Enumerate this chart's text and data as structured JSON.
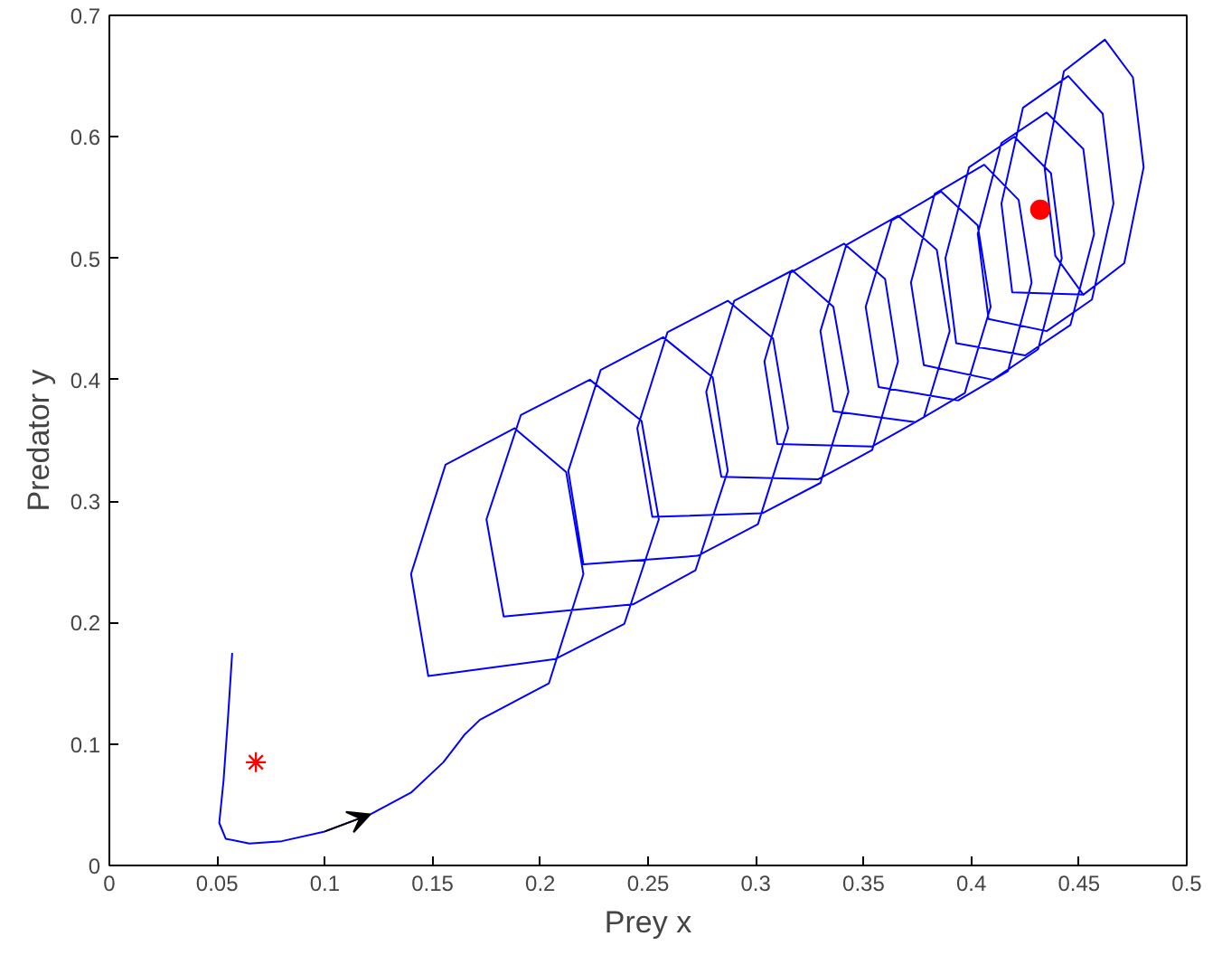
{
  "chart_data": {
    "type": "line",
    "xlabel": "Prey x",
    "ylabel": "Predator y",
    "xlim": [
      0,
      0.5
    ],
    "ylim": [
      0,
      0.7
    ],
    "xticks": [
      0,
      0.05,
      0.1,
      0.15,
      0.2,
      0.25,
      0.3,
      0.35,
      0.4,
      0.45,
      0.5
    ],
    "yticks": [
      0,
      0.1,
      0.2,
      0.3,
      0.4,
      0.5,
      0.6,
      0.7
    ],
    "grid": false,
    "series": [
      {
        "color": "#0000ff",
        "marker": "none",
        "x": [
          0.057,
          0.055,
          0.053,
          0.051,
          0.054,
          0.065,
          0.08,
          0.1,
          0.121,
          0.14,
          0.155,
          0.165,
          0.172,
          0.204,
          0.22,
          0.212,
          0.188,
          0.156,
          0.14,
          0.148,
          0.207,
          0.239,
          0.255,
          0.247,
          0.223,
          0.191,
          0.175,
          0.183,
          0.243,
          0.272,
          0.287,
          0.28,
          0.257,
          0.228,
          0.213,
          0.22,
          0.273,
          0.301,
          0.315,
          0.308,
          0.287,
          0.259,
          0.245,
          0.252,
          0.303,
          0.33,
          0.343,
          0.336,
          0.317,
          0.29,
          0.277,
          0.284,
          0.329,
          0.354,
          0.366,
          0.36,
          0.341,
          0.316,
          0.304,
          0.31,
          0.354,
          0.378,
          0.39,
          0.384,
          0.366,
          0.342,
          0.33,
          0.336,
          0.374,
          0.397,
          0.409,
          0.403,
          0.386,
          0.363,
          0.351,
          0.357,
          0.394,
          0.417,
          0.428,
          0.422,
          0.406,
          0.383,
          0.372,
          0.378,
          0.41,
          0.431,
          0.442,
          0.437,
          0.42,
          0.399,
          0.388,
          0.393,
          0.425,
          0.446,
          0.457,
          0.452,
          0.435,
          0.414,
          0.403,
          0.408,
          0.435,
          0.456,
          0.466,
          0.461,
          0.445,
          0.424,
          0.414,
          0.419,
          0.452,
          0.471,
          0.48,
          0.475,
          0.462,
          0.443,
          0.434,
          0.439,
          0.452,
          0.471,
          0.48,
          0.475,
          0.462,
          0.443,
          0.434,
          0.439,
          0.452
        ],
        "values": [
          0.175,
          0.12,
          0.07,
          0.035,
          0.022,
          0.018,
          0.02,
          0.028,
          0.042,
          0.06,
          0.085,
          0.108,
          0.12,
          0.15,
          0.24,
          0.324,
          0.36,
          0.33,
          0.24,
          0.156,
          0.17,
          0.199,
          0.285,
          0.366,
          0.4,
          0.371,
          0.285,
          0.205,
          0.215,
          0.243,
          0.325,
          0.402,
          0.435,
          0.408,
          0.325,
          0.248,
          0.255,
          0.281,
          0.36,
          0.434,
          0.465,
          0.439,
          0.36,
          0.287,
          0.29,
          0.315,
          0.39,
          0.46,
          0.49,
          0.465,
          0.39,
          0.32,
          0.318,
          0.342,
          0.415,
          0.483,
          0.512,
          0.488,
          0.415,
          0.347,
          0.345,
          0.369,
          0.44,
          0.507,
          0.535,
          0.511,
          0.44,
          0.374,
          0.365,
          0.389,
          0.46,
          0.527,
          0.555,
          0.531,
          0.46,
          0.394,
          0.383,
          0.407,
          0.48,
          0.548,
          0.577,
          0.553,
          0.48,
          0.412,
          0.4,
          0.425,
          0.5,
          0.57,
          0.6,
          0.575,
          0.5,
          0.43,
          0.42,
          0.445,
          0.52,
          0.59,
          0.62,
          0.595,
          0.52,
          0.45,
          0.44,
          0.466,
          0.545,
          0.619,
          0.65,
          0.624,
          0.545,
          0.472,
          0.47,
          0.496,
          0.575,
          0.649,
          0.68,
          0.654,
          0.575,
          0.502,
          0.47,
          0.496,
          0.575,
          0.649,
          0.68,
          0.654,
          0.575,
          0.502,
          0.47
        ]
      },
      {
        "type": "scatter",
        "color": "#ff0000",
        "marker": "cross",
        "x": [
          0.068
        ],
        "values": [
          0.085
        ]
      },
      {
        "type": "scatter",
        "color": "#ff0000",
        "marker": "circle",
        "x": [
          0.432
        ],
        "values": [
          0.54
        ]
      }
    ]
  }
}
